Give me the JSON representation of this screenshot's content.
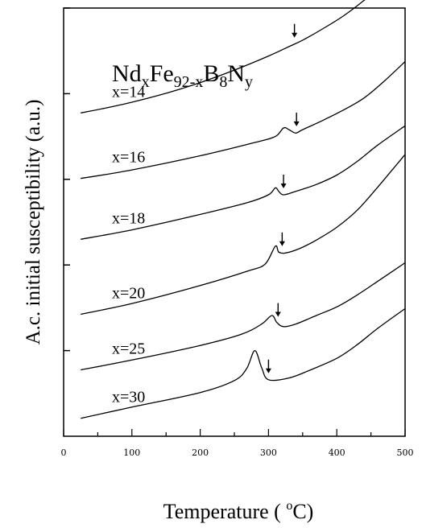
{
  "chart_data": {
    "type": "line",
    "formula": {
      "parts": [
        {
          "text": "Nd",
          "sub": false
        },
        {
          "text": "x",
          "sub": true
        },
        {
          "text": "Fe",
          "sub": false
        },
        {
          "text": "92-x",
          "sub": true
        },
        {
          "text": "B",
          "sub": false
        },
        {
          "text": "8",
          "sub": true
        },
        {
          "text": "N",
          "sub": false
        },
        {
          "text": "y",
          "sub": true
        }
      ]
    },
    "xlabel": "Temperature ( °C)",
    "xlabel_parts": {
      "main": "Temperature ( ",
      "sup": "o",
      "unit": "C)"
    },
    "ylabel": "A.c. initial susceptibility (a.u.)",
    "xlim": [
      0,
      500
    ],
    "xticks": [
      0,
      100,
      200,
      300,
      400,
      500
    ],
    "ylim": [
      0,
      10
    ],
    "yticks": [
      2,
      4,
      6,
      8,
      10
    ],
    "grid": false,
    "series": [
      {
        "name": "x=14",
        "arrow_x": 338,
        "x": [
          25,
          60,
          100,
          150,
          200,
          250,
          300,
          330,
          350,
          380,
          410,
          440,
          470,
          500
        ],
        "y": [
          7.55,
          7.66,
          7.8,
          8.01,
          8.26,
          8.55,
          8.88,
          9.1,
          9.25,
          9.52,
          9.82,
          10.18,
          10.6,
          11.1
        ]
      },
      {
        "name": "x=16",
        "arrow_x": 341,
        "x": [
          25,
          100,
          200,
          280,
          310,
          322,
          330,
          340,
          350,
          380,
          410,
          440,
          470,
          500
        ],
        "y": [
          6.02,
          6.22,
          6.55,
          6.86,
          7.0,
          7.2,
          7.16,
          7.08,
          7.16,
          7.38,
          7.62,
          7.9,
          8.3,
          8.75
        ]
      },
      {
        "name": "x=18",
        "arrow_x": 322,
        "x": [
          25,
          100,
          200,
          270,
          300,
          310,
          315,
          322,
          340,
          370,
          400,
          430,
          460,
          500
        ],
        "y": [
          4.6,
          4.82,
          5.18,
          5.46,
          5.64,
          5.8,
          5.72,
          5.64,
          5.72,
          5.88,
          6.1,
          6.42,
          6.8,
          7.25
        ]
      },
      {
        "name": "x=20",
        "arrow_x": 320,
        "x": [
          25,
          100,
          200,
          270,
          295,
          310,
          315,
          325,
          345,
          370,
          400,
          430,
          460,
          500
        ],
        "y": [
          2.85,
          3.1,
          3.52,
          3.86,
          4.02,
          4.44,
          4.3,
          4.28,
          4.38,
          4.58,
          4.88,
          5.28,
          5.82,
          6.58
        ]
      },
      {
        "name": "x=25",
        "arrow_x": 314,
        "x": [
          25,
          100,
          200,
          260,
          290,
          305,
          312,
          322,
          340,
          370,
          400,
          430,
          460,
          500
        ],
        "y": [
          1.55,
          1.78,
          2.12,
          2.38,
          2.62,
          2.82,
          2.66,
          2.56,
          2.62,
          2.82,
          3.02,
          3.3,
          3.62,
          4.05
        ]
      },
      {
        "name": "x=30",
        "arrow_x": 300,
        "x": [
          25,
          100,
          200,
          250,
          268,
          280,
          290,
          300,
          330,
          360,
          400,
          430,
          460,
          500
        ],
        "y": [
          0.42,
          0.68,
          1.02,
          1.3,
          1.58,
          2.0,
          1.6,
          1.32,
          1.36,
          1.54,
          1.82,
          2.14,
          2.52,
          2.98
        ]
      }
    ]
  }
}
